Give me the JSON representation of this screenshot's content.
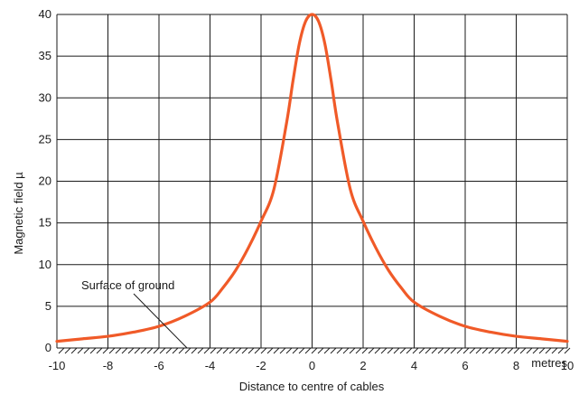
{
  "chart_data": {
    "type": "line",
    "xlabel": "Distance to centre of cables",
    "ylabel": "Magnetic field µ",
    "x_unit_label": "metres",
    "xlim": [
      -10,
      10
    ],
    "ylim": [
      0,
      40
    ],
    "x_ticks": [
      -10,
      -8,
      -6,
      -4,
      -2,
      0,
      2,
      4,
      6,
      8,
      10
    ],
    "x_tick_labels": [
      "-10",
      "-8",
      "-6",
      "-4",
      "-2",
      "0",
      "2",
      "4",
      "6",
      "8",
      "10"
    ],
    "y_ticks": [
      0,
      5,
      10,
      15,
      20,
      25,
      30,
      35,
      40
    ],
    "y_tick_labels": [
      "0",
      "5",
      "10",
      "15",
      "20",
      "25",
      "30",
      "35",
      "40"
    ],
    "grid": true,
    "series": [
      {
        "color": "#f05a28",
        "x": [
          -10,
          -9,
          -8,
          -7,
          -6,
          -5,
          -4,
          -3.5,
          -3,
          -2.5,
          -2,
          -1.5,
          -1,
          -0.75,
          -0.5,
          -0.25,
          0,
          0.25,
          0.5,
          0.75,
          1,
          1.5,
          2,
          2.5,
          3,
          3.5,
          4,
          5,
          6,
          7,
          8,
          9,
          10
        ],
        "y": [
          0.8,
          1.1,
          1.4,
          1.9,
          2.6,
          3.8,
          5.5,
          7.2,
          9.3,
          12,
          15.2,
          19,
          27,
          32,
          36.5,
          39.2,
          40,
          39.2,
          36.5,
          32,
          27,
          19,
          15.2,
          12,
          9.3,
          7.2,
          5.5,
          3.8,
          2.6,
          1.9,
          1.4,
          1.1,
          0.8
        ]
      }
    ],
    "annotations": [
      {
        "text": "Surface of ground",
        "x": -4.9,
        "y": 0
      }
    ]
  }
}
